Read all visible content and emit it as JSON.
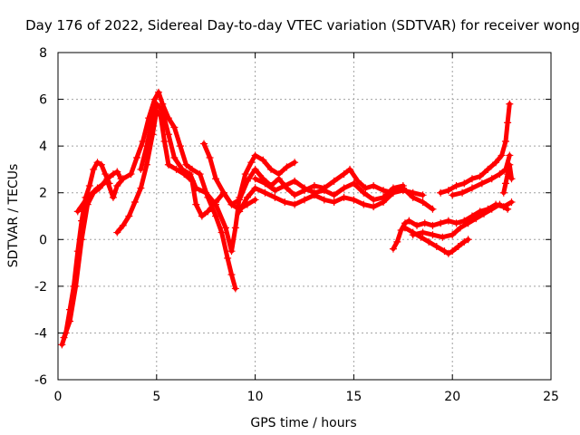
{
  "chart_data": {
    "type": "scatter",
    "title": "Day 176 of 2022, Sidereal Day-to-day VTEC variation (SDTVAR) for receiver wong",
    "xlabel": "GPS time / hours",
    "ylabel": "SDTVAR / TECUs",
    "xlim": [
      0,
      25
    ],
    "ylim": [
      -6,
      8
    ],
    "x_ticks": [
      0,
      5,
      10,
      15,
      20,
      25
    ],
    "y_ticks": [
      -6,
      -4,
      -2,
      0,
      2,
      4,
      6,
      8
    ],
    "grid": true,
    "marker": "+",
    "color": "#ff0000",
    "series": [
      {
        "name": "arc-1",
        "points": [
          [
            0.2,
            -4.5
          ],
          [
            0.4,
            -4.0
          ],
          [
            0.6,
            -3.0
          ],
          [
            0.8,
            -2.0
          ],
          [
            1.0,
            -0.5
          ],
          [
            1.2,
            0.8
          ],
          [
            1.4,
            1.8
          ],
          [
            1.6,
            2.3
          ],
          [
            1.8,
            3.0
          ],
          [
            2.0,
            3.3
          ],
          [
            2.2,
            3.2
          ],
          [
            2.4,
            2.8
          ],
          [
            2.6,
            2.4
          ]
        ]
      },
      {
        "name": "arc-2",
        "points": [
          [
            0.3,
            -4.2
          ],
          [
            0.6,
            -3.5
          ],
          [
            0.9,
            -2.0
          ],
          [
            1.2,
            0.0
          ],
          [
            1.5,
            1.5
          ],
          [
            1.8,
            2.0
          ],
          [
            2.1,
            2.2
          ],
          [
            2.5,
            2.6
          ],
          [
            2.8,
            2.8
          ],
          [
            3.0,
            2.9
          ],
          [
            3.2,
            2.6
          ]
        ]
      },
      {
        "name": "arc-3",
        "points": [
          [
            1.0,
            1.2
          ],
          [
            1.5,
            1.8
          ],
          [
            2.0,
            2.2
          ],
          [
            2.5,
            2.5
          ],
          [
            2.8,
            1.8
          ],
          [
            3.0,
            2.3
          ],
          [
            3.3,
            2.6
          ],
          [
            3.7,
            2.8
          ],
          [
            4.0,
            3.5
          ],
          [
            4.3,
            4.2
          ],
          [
            4.6,
            5.2
          ],
          [
            4.9,
            6.0
          ],
          [
            5.1,
            6.3
          ],
          [
            5.3,
            5.8
          ],
          [
            5.6,
            5.2
          ],
          [
            5.9,
            4.8
          ],
          [
            6.2,
            4.0
          ],
          [
            6.5,
            3.2
          ],
          [
            6.8,
            3.0
          ],
          [
            7.2,
            2.8
          ],
          [
            7.6,
            1.8
          ],
          [
            8.0,
            1.0
          ],
          [
            8.3,
            0.3
          ],
          [
            8.6,
            -0.8
          ],
          [
            8.8,
            -1.5
          ],
          [
            9.0,
            -2.1
          ]
        ]
      },
      {
        "name": "arc-4",
        "points": [
          [
            3.0,
            0.3
          ],
          [
            3.3,
            0.6
          ],
          [
            3.6,
            1.0
          ],
          [
            3.9,
            1.6
          ],
          [
            4.2,
            2.2
          ],
          [
            4.5,
            3.2
          ],
          [
            4.8,
            4.5
          ],
          [
            5.0,
            5.5
          ],
          [
            5.2,
            5.3
          ],
          [
            5.4,
            4.2
          ],
          [
            5.6,
            3.2
          ],
          [
            6.0,
            3.0
          ],
          [
            6.4,
            2.8
          ],
          [
            6.8,
            2.5
          ],
          [
            7.0,
            1.5
          ],
          [
            7.3,
            1.0
          ],
          [
            7.6,
            1.2
          ],
          [
            8.0,
            1.6
          ],
          [
            8.4,
            2.0
          ],
          [
            8.8,
            1.5
          ],
          [
            9.2,
            1.3
          ],
          [
            9.6,
            1.5
          ],
          [
            10.0,
            1.7
          ]
        ]
      },
      {
        "name": "arc-5",
        "points": [
          [
            4.2,
            3.0
          ],
          [
            4.5,
            4.0
          ],
          [
            4.8,
            5.2
          ],
          [
            5.0,
            5.8
          ],
          [
            5.3,
            5.5
          ],
          [
            5.6,
            4.5
          ],
          [
            5.9,
            3.5
          ],
          [
            6.3,
            3.0
          ],
          [
            6.7,
            2.8
          ],
          [
            7.0,
            2.2
          ],
          [
            7.5,
            2.0
          ],
          [
            8.0,
            1.5
          ],
          [
            8.5,
            0.5
          ],
          [
            8.8,
            -0.5
          ],
          [
            9.0,
            0.5
          ],
          [
            9.2,
            1.8
          ],
          [
            9.5,
            2.8
          ],
          [
            9.8,
            3.3
          ],
          [
            10.0,
            3.6
          ],
          [
            10.4,
            3.4
          ],
          [
            10.8,
            3.0
          ],
          [
            11.2,
            2.8
          ],
          [
            11.6,
            3.1
          ],
          [
            12.0,
            3.3
          ]
        ]
      },
      {
        "name": "arc-6",
        "points": [
          [
            7.4,
            4.1
          ],
          [
            7.7,
            3.5
          ],
          [
            8.0,
            2.6
          ],
          [
            8.4,
            2.0
          ],
          [
            8.8,
            1.5
          ],
          [
            9.2,
            1.7
          ],
          [
            9.6,
            2.5
          ],
          [
            10.0,
            3.0
          ],
          [
            10.4,
            2.6
          ],
          [
            10.8,
            2.3
          ],
          [
            11.2,
            2.6
          ],
          [
            11.6,
            2.2
          ],
          [
            12.0,
            1.9
          ],
          [
            12.5,
            2.1
          ],
          [
            13.0,
            2.3
          ],
          [
            13.5,
            2.2
          ],
          [
            14.0,
            2.5
          ],
          [
            14.5,
            2.8
          ],
          [
            14.8,
            3.0
          ],
          [
            15.2,
            2.5
          ],
          [
            15.6,
            2.2
          ],
          [
            16.0,
            2.3
          ],
          [
            16.5,
            2.1
          ],
          [
            17.0,
            2.0
          ],
          [
            17.5,
            2.2
          ],
          [
            18.0,
            1.8
          ],
          [
            18.5,
            1.6
          ],
          [
            19.0,
            1.3
          ]
        ]
      },
      {
        "name": "arc-7",
        "points": [
          [
            9.2,
            1.2
          ],
          [
            9.6,
            1.8
          ],
          [
            10.0,
            2.2
          ],
          [
            10.5,
            2.0
          ],
          [
            11.0,
            1.8
          ],
          [
            11.5,
            1.6
          ],
          [
            12.0,
            1.5
          ],
          [
            12.5,
            1.7
          ],
          [
            13.0,
            1.9
          ],
          [
            13.5,
            1.7
          ],
          [
            14.0,
            1.6
          ],
          [
            14.5,
            1.8
          ],
          [
            15.0,
            1.7
          ],
          [
            15.5,
            1.5
          ],
          [
            16.0,
            1.4
          ],
          [
            16.5,
            1.6
          ],
          [
            17.0,
            2.0
          ],
          [
            17.5,
            2.1
          ],
          [
            18.0,
            2.0
          ],
          [
            18.5,
            1.9
          ]
        ]
      },
      {
        "name": "arc-8",
        "points": [
          [
            10.0,
            2.6
          ],
          [
            10.5,
            2.4
          ],
          [
            11.0,
            2.1
          ],
          [
            11.5,
            2.3
          ],
          [
            12.0,
            2.5
          ],
          [
            12.5,
            2.2
          ],
          [
            13.0,
            2.0
          ],
          [
            13.5,
            2.1
          ],
          [
            14.0,
            1.9
          ],
          [
            14.5,
            2.2
          ],
          [
            15.0,
            2.4
          ],
          [
            15.5,
            2.0
          ],
          [
            16.0,
            1.7
          ],
          [
            16.5,
            1.8
          ],
          [
            17.0,
            2.2
          ],
          [
            17.5,
            2.3
          ]
        ]
      },
      {
        "name": "arc-9",
        "points": [
          [
            17.0,
            -0.4
          ],
          [
            17.2,
            -0.1
          ],
          [
            17.4,
            0.4
          ],
          [
            17.6,
            0.7
          ],
          [
            17.8,
            0.8
          ],
          [
            18.2,
            0.6
          ],
          [
            18.6,
            0.7
          ],
          [
            19.0,
            0.6
          ],
          [
            19.4,
            0.7
          ],
          [
            19.8,
            0.8
          ],
          [
            20.2,
            0.7
          ],
          [
            20.6,
            0.8
          ],
          [
            21.0,
            1.0
          ],
          [
            21.4,
            1.2
          ],
          [
            21.8,
            1.3
          ],
          [
            22.2,
            1.5
          ],
          [
            22.6,
            1.4
          ],
          [
            23.0,
            1.6
          ]
        ]
      },
      {
        "name": "arc-10",
        "points": [
          [
            17.6,
            0.5
          ],
          [
            18.0,
            0.3
          ],
          [
            18.4,
            0.1
          ],
          [
            18.8,
            -0.1
          ],
          [
            19.2,
            -0.3
          ],
          [
            19.6,
            -0.5
          ],
          [
            19.8,
            -0.6
          ],
          [
            20.0,
            -0.5
          ],
          [
            20.3,
            -0.3
          ],
          [
            20.6,
            -0.1
          ],
          [
            20.8,
            0.0
          ]
        ]
      },
      {
        "name": "arc-11",
        "points": [
          [
            18.0,
            0.2
          ],
          [
            18.5,
            0.3
          ],
          [
            19.0,
            0.2
          ],
          [
            19.5,
            0.1
          ],
          [
            20.0,
            0.2
          ],
          [
            20.4,
            0.5
          ],
          [
            20.8,
            0.7
          ],
          [
            21.2,
            0.9
          ],
          [
            21.6,
            1.1
          ],
          [
            22.0,
            1.3
          ],
          [
            22.4,
            1.5
          ],
          [
            22.8,
            1.3
          ]
        ]
      },
      {
        "name": "arc-12",
        "points": [
          [
            19.4,
            2.0
          ],
          [
            19.8,
            2.1
          ],
          [
            20.2,
            2.3
          ],
          [
            20.6,
            2.4
          ],
          [
            21.0,
            2.6
          ],
          [
            21.4,
            2.7
          ],
          [
            21.8,
            3.0
          ],
          [
            22.2,
            3.3
          ],
          [
            22.5,
            3.6
          ],
          [
            22.7,
            4.2
          ],
          [
            22.8,
            5.0
          ],
          [
            22.9,
            5.8
          ]
        ]
      },
      {
        "name": "arc-13",
        "points": [
          [
            20.0,
            1.9
          ],
          [
            20.5,
            2.0
          ],
          [
            21.0,
            2.2
          ],
          [
            21.5,
            2.4
          ],
          [
            22.0,
            2.6
          ],
          [
            22.4,
            2.8
          ],
          [
            22.7,
            3.0
          ],
          [
            22.9,
            3.6
          ]
        ]
      },
      {
        "name": "arc-14",
        "points": [
          [
            22.6,
            2.0
          ],
          [
            22.7,
            2.4
          ],
          [
            22.8,
            2.8
          ],
          [
            22.9,
            3.2
          ],
          [
            23.0,
            2.6
          ]
        ]
      }
    ]
  }
}
